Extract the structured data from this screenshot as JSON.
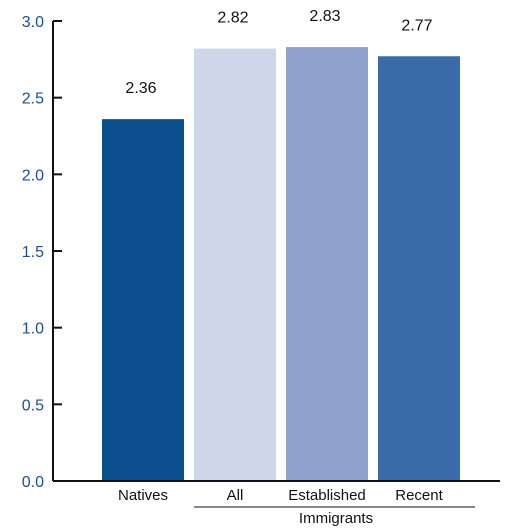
{
  "chart_data": {
    "type": "bar",
    "categories": [
      "Natives",
      "All",
      "Established",
      "Recent"
    ],
    "values": [
      2.36,
      2.82,
      2.83,
      2.77
    ],
    "value_labels": [
      "2.36",
      "2.82",
      "2.83",
      "2.77"
    ],
    "bar_colors": [
      "#0b4f8f",
      "#cdd7e9",
      "#8fa2cc",
      "#3a6ba8"
    ],
    "ylim": [
      0,
      3.0
    ],
    "yticks": [
      "0.0",
      "0.5",
      "1.0",
      "1.5",
      "2.0",
      "2.5",
      "3.0"
    ],
    "group_label": "Immigrants",
    "group_members": [
      "All",
      "Established",
      "Recent"
    ],
    "grid": false,
    "title": "",
    "xlabel": "",
    "ylabel": ""
  },
  "colors": {
    "axis": "#111111",
    "tick_text": "#1f4e8c"
  }
}
